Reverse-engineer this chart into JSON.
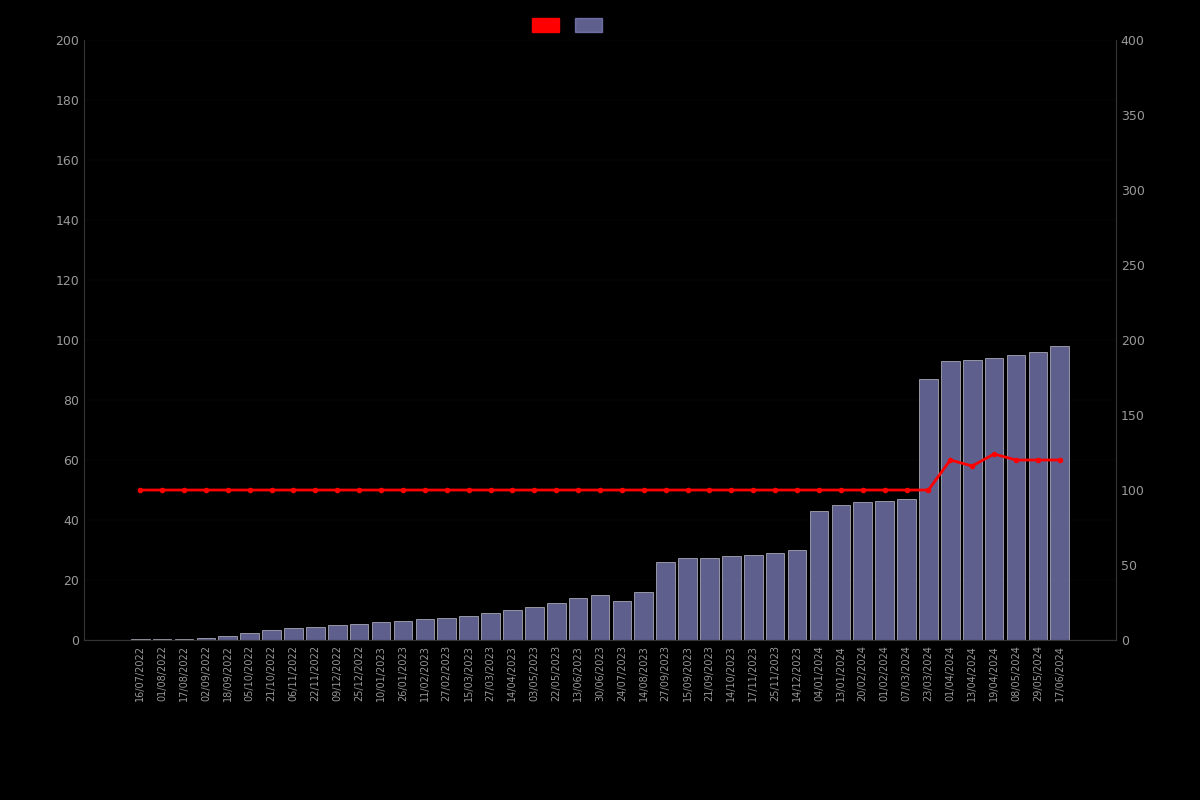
{
  "dates": [
    "16/07/2022",
    "01/08/2022",
    "17/08/2022",
    "02/09/2022",
    "18/09/2022",
    "05/10/2022",
    "21/10/2022",
    "06/11/2022",
    "22/11/2022",
    "09/12/2022",
    "25/12/2022",
    "10/01/2023",
    "26/01/2023",
    "11/02/2023",
    "27/02/2023",
    "15/03/2023",
    "27/03/2023",
    "14/04/2023",
    "03/05/2023",
    "22/05/2023",
    "13/06/2023",
    "30/06/2023",
    "24/07/2023",
    "14/08/2023",
    "27/09/2023",
    "15/09/2023",
    "21/09/2023",
    "14/10/2023",
    "17/11/2023",
    "25/11/2023",
    "14/12/2023",
    "04/01/2024",
    "13/01/2024",
    "20/02/2024",
    "01/02/2024",
    "07/03/2024",
    "23/03/2024",
    "01/04/2024",
    "13/04/2024",
    "19/04/2024",
    "08/05/2024",
    "29/05/2024",
    "17/06/2024"
  ],
  "bar_values": [
    0.5,
    0.5,
    0.5,
    0.7,
    1.5,
    2.5,
    3.5,
    4.0,
    4.5,
    5.0,
    5.5,
    6.0,
    6.5,
    7.0,
    7.5,
    8.0,
    9.0,
    10.0,
    11.0,
    12.5,
    14.0,
    15.0,
    13.0,
    16.0,
    26.0,
    27.5,
    27.5,
    28.0,
    28.5,
    29.0,
    30.0,
    43.0,
    45.0,
    46.0,
    46.5,
    47.0,
    87.0,
    93.0,
    93.5,
    94.0,
    95.0,
    96.0,
    98.0
  ],
  "line_values": [
    49.99,
    49.99,
    49.99,
    49.99,
    49.99,
    49.99,
    49.99,
    49.99,
    49.99,
    49.99,
    49.99,
    49.99,
    49.99,
    49.99,
    49.99,
    49.99,
    49.99,
    49.99,
    49.99,
    49.99,
    49.99,
    49.99,
    49.99,
    49.99,
    49.99,
    49.99,
    49.99,
    49.99,
    49.99,
    49.99,
    49.99,
    49.99,
    49.99,
    49.99,
    49.99,
    49.99,
    49.99,
    60.0,
    58.0,
    62.0,
    60.0,
    60.0,
    60.0
  ],
  "bar_color": "#8888cc",
  "bar_edge_color": "#ffffff",
  "line_color": "#ff0000",
  "background_color": "#000000",
  "text_color": "#999999",
  "left_ylim": [
    0,
    200
  ],
  "right_ylim": [
    0,
    400
  ],
  "left_yticks": [
    0,
    20,
    40,
    60,
    80,
    100,
    120,
    140,
    160,
    180,
    200
  ],
  "right_yticks": [
    0,
    50,
    100,
    150,
    200,
    250,
    300,
    350,
    400
  ],
  "legend_patch1_color": "#ff0000",
  "legend_patch2_color": "#8888cc"
}
